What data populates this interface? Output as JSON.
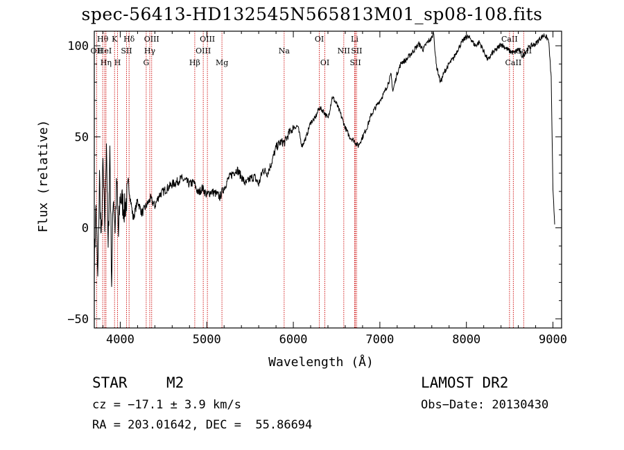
{
  "chart_data": {
    "type": "line",
    "title": "spec-56413-HD132545N565813M01_sp08-108.fits",
    "xlabel": "Wavelength (Å)",
    "ylabel": "Flux (relative)",
    "xlim": [
      3700,
      9100
    ],
    "ylim": [
      -55,
      108
    ],
    "xticks": [
      4000,
      5000,
      6000,
      7000,
      8000,
      9000
    ],
    "yticks": [
      -50,
      0,
      50,
      100
    ],
    "series": [
      {
        "x": [
          3700,
          3720,
          3740,
          3760,
          3780,
          3800,
          3820,
          3840,
          3860,
          3880,
          3900,
          3920,
          3940,
          3960,
          3980,
          4000,
          4050,
          4100,
          4150,
          4200,
          4250,
          4300,
          4350,
          4400,
          4450,
          4500,
          4550,
          4600,
          4650,
          4700,
          4750,
          4800,
          4850,
          4900,
          4950,
          5000,
          5050,
          5100,
          5150,
          5200,
          5250,
          5300,
          5350,
          5400,
          5450,
          5500,
          5550,
          5600,
          5650,
          5700,
          5750,
          5800,
          5850,
          5900,
          5950,
          6000,
          6050,
          6100,
          6150,
          6200,
          6250,
          6300,
          6350,
          6400,
          6450,
          6500,
          6550,
          6600,
          6650,
          6700,
          6750,
          6800,
          6850,
          6900,
          6950,
          7000,
          7050,
          7100,
          7130,
          7150,
          7200,
          7250,
          7300,
          7350,
          7400,
          7450,
          7500,
          7550,
          7600,
          7620,
          7650,
          7700,
          7750,
          7800,
          7850,
          7900,
          7950,
          8000,
          8050,
          8100,
          8150,
          8200,
          8250,
          8300,
          8350,
          8400,
          8450,
          8500,
          8550,
          8600,
          8650,
          8700,
          8750,
          8800,
          8850,
          8900,
          8950,
          8980,
          9000,
          9020
        ],
        "y": [
          -20,
          12,
          -30,
          28,
          -10,
          35,
          0,
          50,
          -15,
          45,
          -30,
          20,
          0,
          25,
          -5,
          18,
          10,
          22,
          5,
          15,
          8,
          12,
          16,
          12,
          18,
          20,
          22,
          24,
          25,
          27,
          26,
          24,
          25,
          19,
          22,
          18,
          20,
          19,
          17,
          22,
          27,
          30,
          32,
          28,
          24,
          27,
          28,
          24,
          32,
          30,
          36,
          44,
          47,
          47,
          52,
          55,
          56,
          45,
          50,
          58,
          60,
          66,
          64,
          60,
          72,
          68,
          62,
          55,
          50,
          48,
          45,
          50,
          55,
          62,
          66,
          70,
          74,
          80,
          84,
          75,
          85,
          91,
          92,
          95,
          98,
          101,
          98,
          102,
          104,
          108,
          90,
          80,
          86,
          90,
          93,
          98,
          102,
          105,
          104,
          100,
          102,
          97,
          92,
          96,
          98,
          101,
          99,
          97,
          96,
          98,
          94,
          98,
          100,
          101,
          104,
          106,
          103,
          82,
          20,
          3
        ]
      }
    ],
    "lines": [
      {
        "name": "OII",
        "wavelength": 3727,
        "row": 2
      },
      {
        "name": "Hθ",
        "wavelength": 3797,
        "row": 1
      },
      {
        "name": "HeI",
        "wavelength": 3820,
        "row": 2
      },
      {
        "name": "Hη",
        "wavelength": 3835,
        "row": 3
      },
      {
        "name": "K",
        "wavelength": 3934,
        "row": 1
      },
      {
        "name": "H",
        "wavelength": 3969,
        "row": 3
      },
      {
        "name": "SII",
        "wavelength": 4072,
        "row": 2
      },
      {
        "name": "Hδ",
        "wavelength": 4102,
        "row": 1
      },
      {
        "name": "G",
        "wavelength": 4300,
        "row": 3
      },
      {
        "name": "Hγ",
        "wavelength": 4341,
        "row": 2
      },
      {
        "name": "OIII",
        "wavelength": 4363,
        "row": 1
      },
      {
        "name": "Hβ",
        "wavelength": 4861,
        "row": 3
      },
      {
        "name": "OIII",
        "wavelength": 4959,
        "row": 2
      },
      {
        "name": "OIII",
        "wavelength": 5007,
        "row": 1
      },
      {
        "name": "Mg",
        "wavelength": 5175,
        "row": 3
      },
      {
        "name": "Na",
        "wavelength": 5894,
        "row": 2
      },
      {
        "name": "OI",
        "wavelength": 6300,
        "row": 1
      },
      {
        "name": "OI",
        "wavelength": 6364,
        "row": 3
      },
      {
        "name": "NII",
        "wavelength": 6583,
        "row": 2
      },
      {
        "name": "Li",
        "wavelength": 6708,
        "row": 1
      },
      {
        "name": "SII",
        "wavelength": 6717,
        "row": 3
      },
      {
        "name": "SII",
        "wavelength": 6731,
        "row": 2
      },
      {
        "name": "CaII",
        "wavelength": 8498,
        "row": 1
      },
      {
        "name": "CaII",
        "wavelength": 8542,
        "row": 3
      },
      {
        "name": "CaII",
        "wavelength": 8662,
        "row": 2
      }
    ],
    "line_color": "#cc0000",
    "grid": false
  },
  "info": {
    "class": "STAR",
    "subclass": "M2",
    "cz": "cz = −17.1 ± 3.9 km/s",
    "coords": "RA = 203.01642, DEC =  55.86694",
    "survey": "LAMOST DR2",
    "obs_date": "Obs−Date: 20130430"
  }
}
